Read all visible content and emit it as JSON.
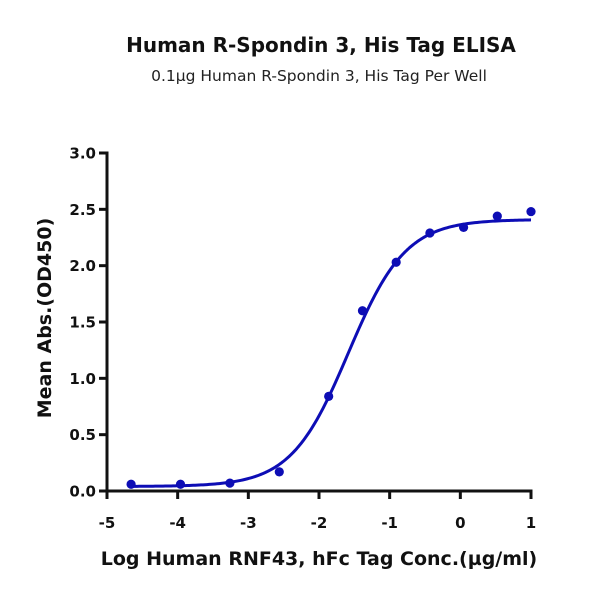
{
  "chart_data": {
    "type": "scatter",
    "title": "Human R-Spondin 3, His Tag ELISA",
    "subtitle": "0.1µg Human R-Spondin 3, His Tag Per Well",
    "xlabel": "Log Human RNF43, hFc Tag Conc.(µg/ml)",
    "ylabel": "Mean Abs.(OD450)",
    "xlim": [
      -5,
      1
    ],
    "ylim": [
      0,
      3.0
    ],
    "x_ticks": [
      -5,
      -4,
      -3,
      -2,
      -1,
      0,
      1
    ],
    "x_tick_labels": [
      "-5",
      "-4",
      "-3",
      "-2",
      "-1",
      "0",
      "1"
    ],
    "y_ticks": [
      0,
      0.5,
      1.0,
      1.5,
      2.0,
      2.5,
      3.0
    ],
    "y_tick_labels": [
      "0.0",
      "0.5",
      "1.0",
      "1.5",
      "2.0",
      "2.5",
      "3.0"
    ],
    "grid": false,
    "legend": "none",
    "series": [
      {
        "name": "Human R-Spondin 3, His Tag",
        "color": "#0d0db5",
        "x": [
          -4.659,
          -3.96,
          -3.261,
          -2.562,
          -1.863,
          -1.385,
          -0.908,
          -0.431,
          0.046,
          0.523,
          1.0
        ],
        "y": [
          0.06,
          0.06,
          0.07,
          0.17,
          0.84,
          1.6,
          2.03,
          2.29,
          2.34,
          2.44,
          2.48
        ],
        "fit": {
          "model": "4PL",
          "bottom": 0.04,
          "top": 2.41,
          "log_ec50": -1.585,
          "hill_slope": 1.07
        }
      }
    ]
  }
}
